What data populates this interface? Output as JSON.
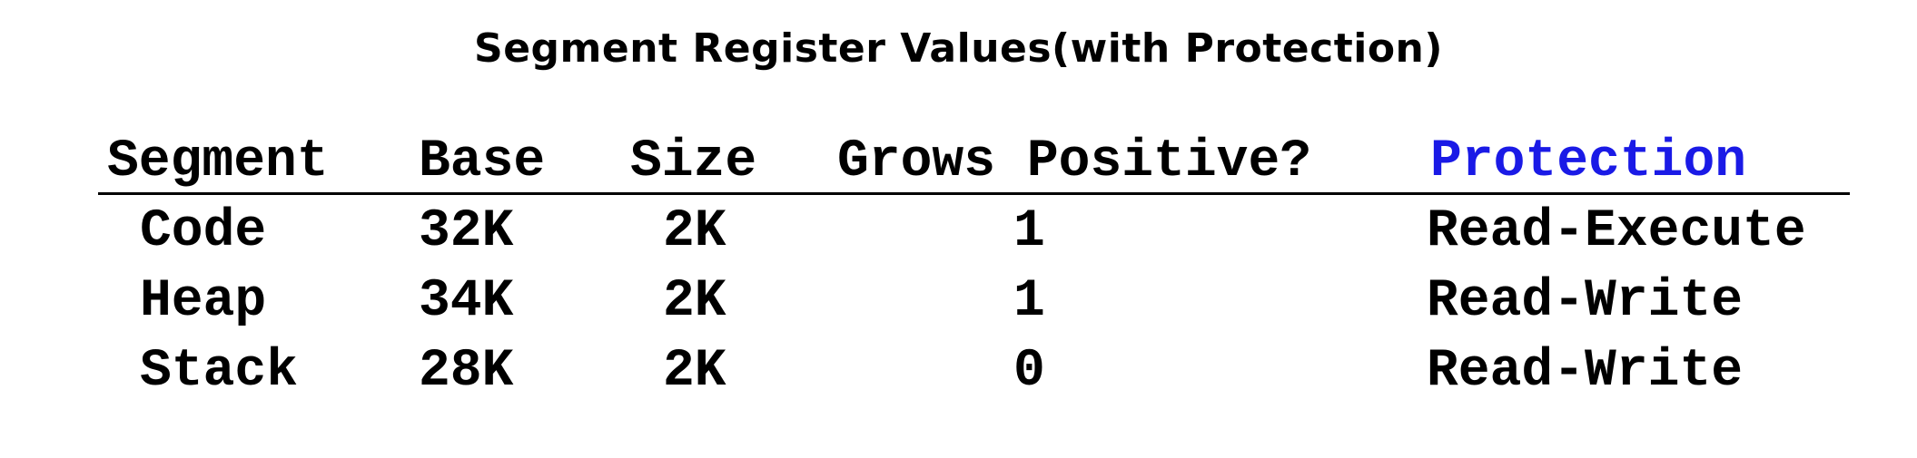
{
  "title": "Segment Register Values(with Protection)",
  "accent_color": "#1a1ae6",
  "table": {
    "headers": [
      "Segment",
      "Base",
      "Size",
      "Grows Positive?",
      "Protection"
    ],
    "rows": [
      [
        "Code",
        "32K",
        "2K",
        "1",
        "Read-Execute"
      ],
      [
        "Heap",
        "34K",
        "2K",
        "1",
        "Read-Write"
      ],
      [
        "Stack",
        "28K",
        "2K",
        "0",
        "Read-Write"
      ]
    ]
  }
}
